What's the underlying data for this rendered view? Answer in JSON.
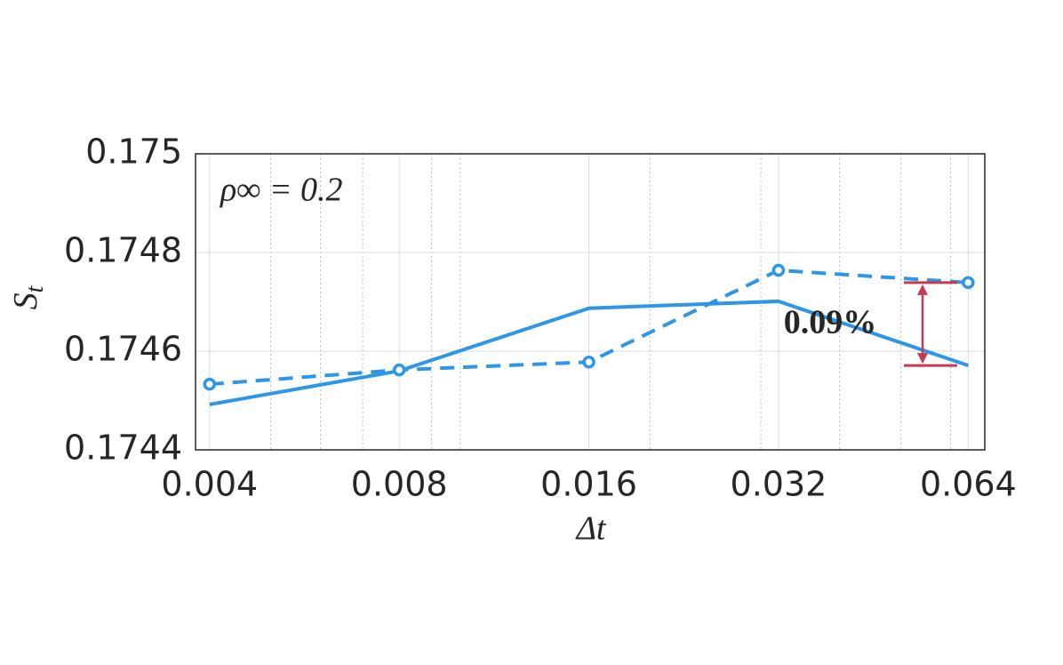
{
  "chart_data": {
    "type": "line",
    "xlabel": "Δt",
    "ylabel": {
      "main": "S",
      "sub": "t"
    },
    "x": [
      0.004,
      0.008,
      0.016,
      0.032,
      0.064
    ],
    "series": [
      {
        "color": "#2d96e6",
        "dash": false,
        "marker": null,
        "values": [
          0.174492,
          0.17456,
          0.174687,
          0.174701,
          0.174571
        ]
      },
      {
        "color": "#2d96e6",
        "dash": true,
        "marker": "o",
        "values": [
          0.174533,
          0.174562,
          0.174578,
          0.174764,
          0.174739
        ]
      }
    ],
    "xscale": "log",
    "xlim": [
      0.0038,
      0.068
    ],
    "xticks": [
      0.004,
      0.008,
      0.016,
      0.032,
      0.064
    ],
    "x_minor_ticks": [
      0.005,
      0.006,
      0.007,
      0.009,
      0.01,
      0.02,
      0.03,
      0.04,
      0.05,
      0.06
    ],
    "ylim": [
      0.1744,
      0.175
    ],
    "yticks": [
      0.1744,
      0.1746,
      0.1748,
      0.175
    ],
    "grid": true,
    "annotations": [
      {
        "text": "ρ∞ = 0.2",
        "color": "#000000"
      },
      {
        "text": "0.09%",
        "color": "#c8384f"
      }
    ]
  }
}
